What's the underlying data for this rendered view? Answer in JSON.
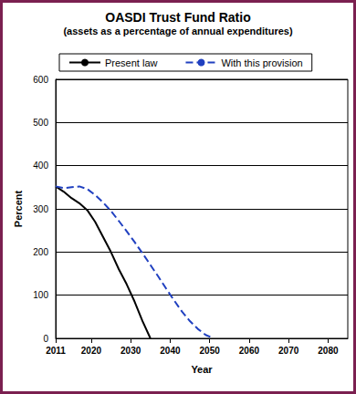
{
  "chart_data": {
    "type": "line",
    "title": "OASDI Trust Fund Ratio",
    "subtitle": "(assets as a percentage of annual expenditures)",
    "x_label": "Year",
    "y_label": "Percent",
    "x": [
      2011,
      2013,
      2015,
      2017,
      2019,
      2021,
      2023,
      2025,
      2027,
      2029,
      2031,
      2033,
      2035,
      2037,
      2039,
      2041,
      2043,
      2045,
      2047,
      2049,
      2051
    ],
    "series": [
      {
        "name": "Present law",
        "color": "#000000",
        "line_style": "solid",
        "values": [
          352,
          340,
          325,
          313,
          297,
          270,
          235,
          200,
          160,
          125,
          85,
          40,
          0,
          null,
          null,
          null,
          null,
          null,
          null,
          null,
          null
        ]
      },
      {
        "name": "With this provision",
        "color": "#2040c0",
        "line_style": "dashed",
        "values": [
          352,
          348,
          350,
          352,
          346,
          332,
          315,
          295,
          272,
          248,
          223,
          197,
          170,
          143,
          115,
          88,
          62,
          40,
          22,
          8,
          0
        ]
      }
    ],
    "xlim": [
      2011,
      2085
    ],
    "xticks": [
      2011,
      2020,
      2030,
      2040,
      2050,
      2060,
      2070,
      2080
    ],
    "ylim": [
      0,
      600
    ],
    "yticks": [
      0,
      100,
      200,
      300,
      400,
      500,
      600
    ],
    "grid": true,
    "legend": "top"
  }
}
